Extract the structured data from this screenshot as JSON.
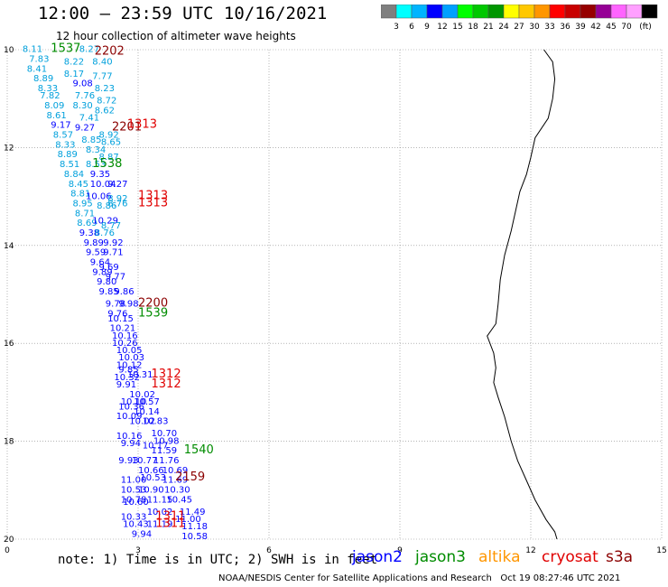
{
  "header": {
    "title": "12:00 – 23:59 UTC 10/16/2021",
    "subtitle": "12 hour collection of altimeter wave heights"
  },
  "colorbar": {
    "colors": [
      "#7f7f7f",
      "#00ffff",
      "#00b4ff",
      "#0000ff",
      "#00a0ff",
      "#00ff00",
      "#00c800",
      "#009600",
      "#ffff00",
      "#ffc800",
      "#ff9600",
      "#ff0000",
      "#c80000",
      "#960000",
      "#960096",
      "#ff64ff",
      "#ffa0ff",
      "#000000"
    ],
    "labels": [
      "3",
      "6",
      "9",
      "12",
      "15",
      "18",
      "21",
      "24",
      "27",
      "30",
      "33",
      "36",
      "39",
      "42",
      "45",
      "70",
      "(ft)"
    ]
  },
  "axes": {
    "x_ticks": [
      "0",
      "3",
      "6",
      "9",
      "12",
      "15"
    ],
    "y_ticks": [
      "10",
      "12",
      "14",
      "16",
      "18",
      "20"
    ]
  },
  "satellite_colors": {
    "jason2": "#0000ff",
    "jason3": "#008c00",
    "altika": "#ff9600",
    "cryosat": "#e00000",
    "s3a": "#8b0000",
    "cyan_track": "#00a0dc"
  },
  "track_labels": [
    {
      "text": "8.11",
      "color": "cyan_track",
      "lon": 0.35,
      "lat": 10.05
    },
    {
      "text": "1537",
      "color": "jason3",
      "lon": 1.0,
      "lat": 10.05
    },
    {
      "text": "8.27",
      "color": "cyan_track",
      "lon": 1.65,
      "lat": 10.05
    },
    {
      "text": "2202",
      "color": "s3a",
      "lon": 2.0,
      "lat": 10.1
    },
    {
      "text": "7.83",
      "color": "cyan_track",
      "lon": 0.5,
      "lat": 10.25
    },
    {
      "text": "8.22",
      "color": "cyan_track",
      "lon": 1.3,
      "lat": 10.3
    },
    {
      "text": "8.40",
      "color": "cyan_track",
      "lon": 1.95,
      "lat": 10.3
    },
    {
      "text": "8.41",
      "color": "cyan_track",
      "lon": 0.45,
      "lat": 10.45
    },
    {
      "text": "8.17",
      "color": "cyan_track",
      "lon": 1.3,
      "lat": 10.55
    },
    {
      "text": "7.77",
      "color": "cyan_track",
      "lon": 1.95,
      "lat": 10.6
    },
    {
      "text": "8.89",
      "color": "cyan_track",
      "lon": 0.6,
      "lat": 10.65
    },
    {
      "text": "9.08",
      "color": "jason2",
      "lon": 1.5,
      "lat": 10.75
    },
    {
      "text": "8.33",
      "color": "cyan_track",
      "lon": 0.7,
      "lat": 10.85
    },
    {
      "text": "8.23",
      "color": "cyan_track",
      "lon": 2.0,
      "lat": 10.85
    },
    {
      "text": "7.82",
      "color": "cyan_track",
      "lon": 0.75,
      "lat": 11.0
    },
    {
      "text": "7.76",
      "color": "cyan_track",
      "lon": 1.55,
      "lat": 11.0
    },
    {
      "text": "8.09",
      "color": "cyan_track",
      "lon": 0.85,
      "lat": 11.2
    },
    {
      "text": "8.30",
      "color": "cyan_track",
      "lon": 1.5,
      "lat": 11.2
    },
    {
      "text": "8.72",
      "color": "cyan_track",
      "lon": 2.05,
      "lat": 11.1
    },
    {
      "text": "8.61",
      "color": "cyan_track",
      "lon": 0.9,
      "lat": 11.4
    },
    {
      "text": "8.62",
      "color": "cyan_track",
      "lon": 2.0,
      "lat": 11.3
    },
    {
      "text": "7.41",
      "color": "cyan_track",
      "lon": 1.65,
      "lat": 11.45
    },
    {
      "text": "9.17",
      "color": "jason2",
      "lon": 1.0,
      "lat": 11.6
    },
    {
      "text": "9.27",
      "color": "jason2",
      "lon": 1.55,
      "lat": 11.65
    },
    {
      "text": "2201",
      "color": "s3a",
      "lon": 2.4,
      "lat": 11.65
    },
    {
      "text": "1313",
      "color": "cryosat",
      "lon": 2.75,
      "lat": 11.6
    },
    {
      "text": "8.57",
      "color": "cyan_track",
      "lon": 1.05,
      "lat": 11.8
    },
    {
      "text": "8.92",
      "color": "cyan_track",
      "lon": 2.1,
      "lat": 11.8
    },
    {
      "text": "8.85",
      "color": "cyan_track",
      "lon": 1.7,
      "lat": 11.9
    },
    {
      "text": "8.33",
      "color": "cyan_track",
      "lon": 1.1,
      "lat": 12.0
    },
    {
      "text": "8.65",
      "color": "cyan_track",
      "lon": 2.15,
      "lat": 11.95
    },
    {
      "text": "8.34",
      "color": "cyan_track",
      "lon": 1.8,
      "lat": 12.1
    },
    {
      "text": "8.89",
      "color": "cyan_track",
      "lon": 1.15,
      "lat": 12.2
    },
    {
      "text": "8.87",
      "color": "cyan_track",
      "lon": 2.1,
      "lat": 12.25
    },
    {
      "text": "8.51",
      "color": "cyan_track",
      "lon": 1.2,
      "lat": 12.4
    },
    {
      "text": "8.53",
      "color": "cyan_track",
      "lon": 1.8,
      "lat": 12.4
    },
    {
      "text": "1538",
      "color": "jason3",
      "lon": 1.95,
      "lat": 12.4
    },
    {
      "text": "8.84",
      "color": "cyan_track",
      "lon": 1.3,
      "lat": 12.6
    },
    {
      "text": "9.35",
      "color": "jason2",
      "lon": 1.9,
      "lat": 12.6
    },
    {
      "text": "8.45",
      "color": "cyan_track",
      "lon": 1.4,
      "lat": 12.8
    },
    {
      "text": "10.04",
      "color": "jason2",
      "lon": 1.9,
      "lat": 12.8
    },
    {
      "text": "9.27",
      "color": "jason2",
      "lon": 2.3,
      "lat": 12.8
    },
    {
      "text": "8.81",
      "color": "cyan_track",
      "lon": 1.45,
      "lat": 13.0
    },
    {
      "text": "10.06",
      "color": "jason2",
      "lon": 1.8,
      "lat": 13.05
    },
    {
      "text": "8.92",
      "color": "cyan_track",
      "lon": 2.3,
      "lat": 13.1
    },
    {
      "text": "1313",
      "color": "cryosat",
      "lon": 3.0,
      "lat": 13.05
    },
    {
      "text": "8.95",
      "color": "cyan_track",
      "lon": 1.5,
      "lat": 13.2
    },
    {
      "text": "8.86",
      "color": "cyan_track",
      "lon": 2.05,
      "lat": 13.25
    },
    {
      "text": "8.76",
      "color": "cyan_track",
      "lon": 2.3,
      "lat": 13.2
    },
    {
      "text": "1313",
      "color": "cryosat",
      "lon": 3.0,
      "lat": 13.2
    },
    {
      "text": "8.71",
      "color": "cyan_track",
      "lon": 1.55,
      "lat": 13.4
    },
    {
      "text": "8.69",
      "color": "cyan_track",
      "lon": 1.6,
      "lat": 13.6
    },
    {
      "text": "10.29",
      "color": "jason2",
      "lon": 1.95,
      "lat": 13.55
    },
    {
      "text": "8.77",
      "color": "cyan_track",
      "lon": 2.15,
      "lat": 13.65
    },
    {
      "text": "9.38",
      "color": "jason2",
      "lon": 1.65,
      "lat": 13.8
    },
    {
      "text": "8.76",
      "color": "cyan_track",
      "lon": 2.0,
      "lat": 13.8
    },
    {
      "text": "9.89",
      "color": "jason2",
      "lon": 1.75,
      "lat": 14.0
    },
    {
      "text": "9.92",
      "color": "jason2",
      "lon": 2.2,
      "lat": 14.0
    },
    {
      "text": "9.59",
      "color": "jason2",
      "lon": 1.8,
      "lat": 14.2
    },
    {
      "text": "9.71",
      "color": "jason2",
      "lon": 2.2,
      "lat": 14.2
    },
    {
      "text": "9.64",
      "color": "jason2",
      "lon": 1.9,
      "lat": 14.4
    },
    {
      "text": "9.69",
      "color": "jason2",
      "lon": 2.1,
      "lat": 14.5
    },
    {
      "text": "9.89",
      "color": "jason2",
      "lon": 1.95,
      "lat": 14.6
    },
    {
      "text": "9.77",
      "color": "jason2",
      "lon": 2.25,
      "lat": 14.7
    },
    {
      "text": "9.80",
      "color": "jason2",
      "lon": 2.05,
      "lat": 14.8
    },
    {
      "text": "9.85",
      "color": "jason2",
      "lon": 2.1,
      "lat": 15.0
    },
    {
      "text": "9.86",
      "color": "jason2",
      "lon": 2.45,
      "lat": 15.0
    },
    {
      "text": "9.78",
      "color": "jason2",
      "lon": 2.25,
      "lat": 15.25
    },
    {
      "text": "9.98",
      "color": "jason2",
      "lon": 2.55,
      "lat": 15.25
    },
    {
      "text": "2200",
      "color": "s3a",
      "lon": 3.0,
      "lat": 15.25
    },
    {
      "text": "9.76",
      "color": "jason2",
      "lon": 2.3,
      "lat": 15.45
    },
    {
      "text": "1539",
      "color": "jason3",
      "lon": 3.0,
      "lat": 15.45
    },
    {
      "text": "10.15",
      "color": "jason2",
      "lon": 2.3,
      "lat": 15.55
    },
    {
      "text": "10.21",
      "color": "jason2",
      "lon": 2.35,
      "lat": 15.75
    },
    {
      "text": "10.16",
      "color": "jason2",
      "lon": 2.4,
      "lat": 15.9
    },
    {
      "text": "10.26",
      "color": "jason2",
      "lon": 2.4,
      "lat": 16.05
    },
    {
      "text": "10.05",
      "color": "jason2",
      "lon": 2.5,
      "lat": 16.2
    },
    {
      "text": "10.03",
      "color": "jason2",
      "lon": 2.55,
      "lat": 16.35
    },
    {
      "text": "10.12",
      "color": "jason2",
      "lon": 2.5,
      "lat": 16.5
    },
    {
      "text": "9.85",
      "color": "jason2",
      "lon": 2.55,
      "lat": 16.6
    },
    {
      "text": "10.32",
      "color": "jason2",
      "lon": 2.45,
      "lat": 16.75
    },
    {
      "text": "10.31",
      "color": "jason2",
      "lon": 2.75,
      "lat": 16.7
    },
    {
      "text": "1312",
      "color": "cryosat",
      "lon": 3.3,
      "lat": 16.7
    },
    {
      "text": "9.91",
      "color": "jason2",
      "lon": 2.5,
      "lat": 16.9
    },
    {
      "text": "1312",
      "color": "cryosat",
      "lon": 3.3,
      "lat": 16.9
    },
    {
      "text": "10.02",
      "color": "jason2",
      "lon": 2.8,
      "lat": 17.1
    },
    {
      "text": "10.10",
      "color": "jason2",
      "lon": 2.6,
      "lat": 17.25
    },
    {
      "text": "10.57",
      "color": "jason2",
      "lon": 2.9,
      "lat": 17.25
    },
    {
      "text": "10.36",
      "color": "jason2",
      "lon": 2.55,
      "lat": 17.35
    },
    {
      "text": "10.14",
      "color": "jason2",
      "lon": 2.9,
      "lat": 17.45
    },
    {
      "text": "10.09",
      "color": "jason2",
      "lon": 2.5,
      "lat": 17.55
    },
    {
      "text": "10.02",
      "color": "jason2",
      "lon": 2.8,
      "lat": 17.65
    },
    {
      "text": "10.83",
      "color": "jason2",
      "lon": 3.1,
      "lat": 17.65
    },
    {
      "text": "10.70",
      "color": "jason2",
      "lon": 3.3,
      "lat": 17.9
    },
    {
      "text": "10.16",
      "color": "jason2",
      "lon": 2.5,
      "lat": 17.95
    },
    {
      "text": "9.94",
      "color": "jason2",
      "lon": 2.6,
      "lat": 18.1
    },
    {
      "text": "10.98",
      "color": "jason2",
      "lon": 3.35,
      "lat": 18.05
    },
    {
      "text": "10.17",
      "color": "jason2",
      "lon": 3.1,
      "lat": 18.15
    },
    {
      "text": "11.59",
      "color": "jason2",
      "lon": 3.3,
      "lat": 18.25
    },
    {
      "text": "1540",
      "color": "jason3",
      "lon": 4.05,
      "lat": 18.25
    },
    {
      "text": "9.93",
      "color": "jason2",
      "lon": 2.55,
      "lat": 18.45
    },
    {
      "text": "10.77",
      "color": "jason2",
      "lon": 2.85,
      "lat": 18.45
    },
    {
      "text": "11.76",
      "color": "jason2",
      "lon": 3.35,
      "lat": 18.45
    },
    {
      "text": "10.66",
      "color": "jason2",
      "lon": 3.0,
      "lat": 18.65
    },
    {
      "text": "10.69",
      "color": "jason2",
      "lon": 3.55,
      "lat": 18.65
    },
    {
      "text": "11.00",
      "color": "jason2",
      "lon": 2.6,
      "lat": 18.85
    },
    {
      "text": "10.53",
      "color": "jason2",
      "lon": 3.05,
      "lat": 18.8
    },
    {
      "text": "11.69",
      "color": "jason2",
      "lon": 3.55,
      "lat": 18.85
    },
    {
      "text": "2159",
      "color": "s3a",
      "lon": 3.85,
      "lat": 18.8
    },
    {
      "text": "10.53",
      "color": "jason2",
      "lon": 2.6,
      "lat": 19.05
    },
    {
      "text": "10.90",
      "color": "jason2",
      "lon": 3.0,
      "lat": 19.05
    },
    {
      "text": "10.30",
      "color": "jason2",
      "lon": 3.6,
      "lat": 19.05
    },
    {
      "text": "10.78",
      "color": "jason2",
      "lon": 2.6,
      "lat": 19.25
    },
    {
      "text": "11.15",
      "color": "jason2",
      "lon": 3.2,
      "lat": 19.25
    },
    {
      "text": "10.45",
      "color": "jason2",
      "lon": 3.65,
      "lat": 19.25
    },
    {
      "text": "10.60",
      "color": "jason2",
      "lon": 2.65,
      "lat": 19.3
    },
    {
      "text": "10.02",
      "color": "jason2",
      "lon": 3.2,
      "lat": 19.5
    },
    {
      "text": "11.49",
      "color": "jason2",
      "lon": 3.95,
      "lat": 19.5
    },
    {
      "text": "10.33",
      "color": "jason2",
      "lon": 2.6,
      "lat": 19.6
    },
    {
      "text": "1311",
      "color": "cryosat",
      "lon": 3.4,
      "lat": 19.6
    },
    {
      "text": "11.00",
      "color": "jason2",
      "lon": 3.85,
      "lat": 19.65
    },
    {
      "text": "10.43",
      "color": "jason2",
      "lon": 2.65,
      "lat": 19.75
    },
    {
      "text": "11.19",
      "color": "jason2",
      "lon": 3.2,
      "lat": 19.75
    },
    {
      "text": "1311",
      "color": "cryosat",
      "lon": 3.4,
      "lat": 19.75
    },
    {
      "text": "11.18",
      "color": "jason2",
      "lon": 4.0,
      "lat": 19.8
    },
    {
      "text": "9.94",
      "color": "jason2",
      "lon": 2.85,
      "lat": 19.95
    },
    {
      "text": "10.58",
      "color": "jason2",
      "lon": 4.0,
      "lat": 20.0
    }
  ],
  "legend": {
    "note": "note: 1) Time is in UTC; 2) SWH is in feet",
    "jason2": "jason2",
    "jason3": "jason3",
    "altika": "altika",
    "cryosat": "cryosat",
    "s3a": "s3a"
  },
  "footer": {
    "text": "NOAA/NESDIS Center for Satellite Applications and Research   Oct 19 08:27:46 UTC 2021"
  }
}
